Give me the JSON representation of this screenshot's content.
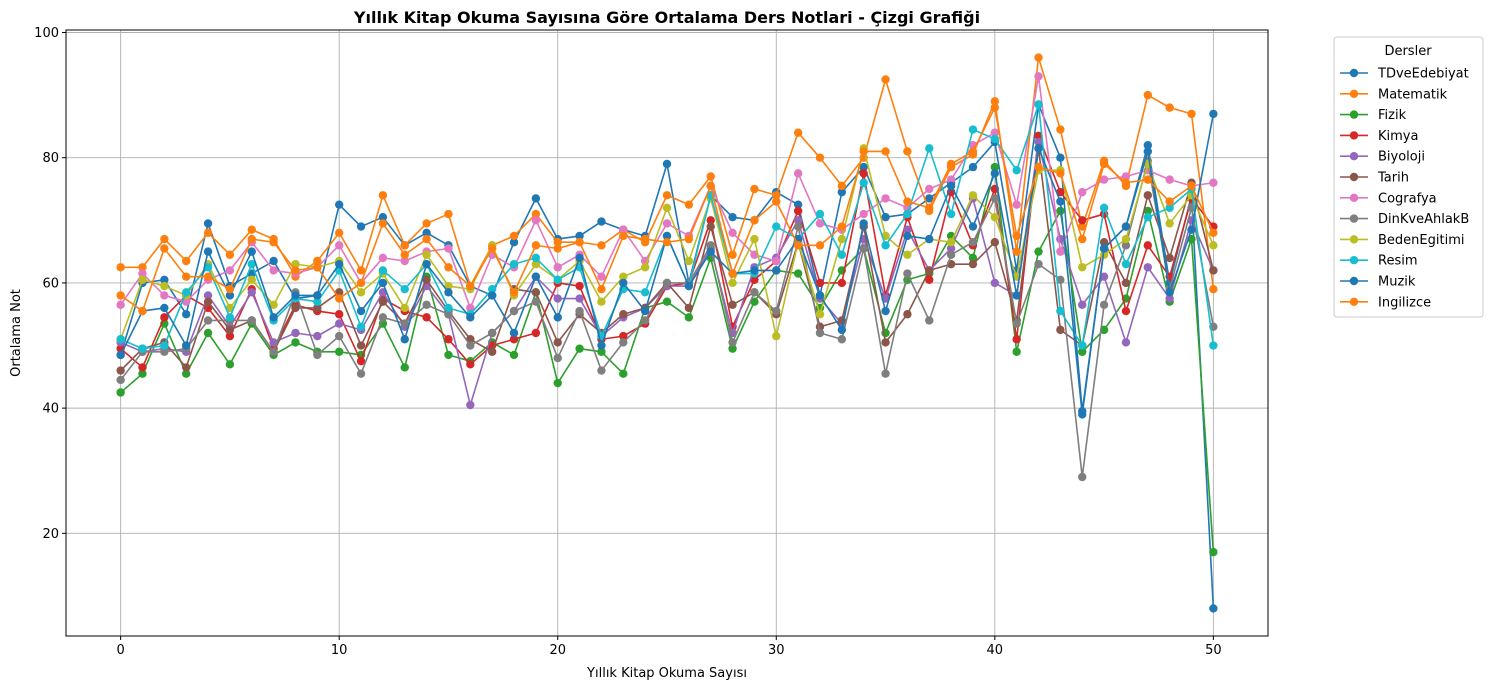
{
  "chart_data": {
    "type": "line",
    "title": "Yıllık Kitap Okuma Sayısına Göre Ortalama Ders Notlari - Çizgi Grafiği",
    "xlabel": "Yıllık Kitap Okuma Sayısı",
    "ylabel": "Ortalama Not",
    "xlim": [
      -2.5,
      52.5
    ],
    "ylim": [
      3.6,
      100.4
    ],
    "xticks": [
      0,
      10,
      20,
      30,
      40,
      50
    ],
    "yticks": [
      20,
      40,
      60,
      80,
      100
    ],
    "grid": true,
    "legend_title": "Dersler",
    "legend_position": "outside-right-top",
    "x": [
      0,
      1,
      2,
      3,
      4,
      5,
      6,
      7,
      8,
      9,
      10,
      11,
      12,
      13,
      14,
      15,
      16,
      17,
      18,
      19,
      20,
      21,
      22,
      23,
      24,
      25,
      26,
      27,
      28,
      29,
      30,
      31,
      32,
      33,
      34,
      35,
      36,
      37,
      38,
      39,
      40,
      41,
      42,
      43,
      44,
      45,
      46,
      47,
      48,
      49,
      50
    ],
    "series": [
      {
        "name": "TDveEdebiyat",
        "color": "#1f77b4",
        "values": [
          48.5,
          60.0,
          60.5,
          55.0,
          69.5,
          59.5,
          61.5,
          63.5,
          57.5,
          58.0,
          72.5,
          69.0,
          70.5,
          66.0,
          68.0,
          66.0,
          59.5,
          58.0,
          66.5,
          73.5,
          67.0,
          67.5,
          69.8,
          68.5,
          67.5,
          79.0,
          60.0,
          74.0,
          70.5,
          70.0,
          74.5,
          72.5,
          58.0,
          74.5,
          78.5,
          70.5,
          71.0,
          73.5,
          76.0,
          78.5,
          82.5,
          62.0,
          88.5,
          80.0,
          39.5,
          65.5,
          69.0,
          82.0,
          60.0,
          74.0,
          8.0
        ]
      },
      {
        "name": "Matematik",
        "color": "#ff7f0e",
        "values": [
          62.5,
          62.5,
          67.0,
          63.5,
          68.0,
          64.5,
          68.5,
          67.0,
          61.0,
          63.5,
          68.0,
          62.0,
          74.0,
          66.0,
          69.5,
          71.0,
          59.5,
          66.0,
          67.5,
          71.0,
          66.5,
          66.5,
          66.0,
          68.5,
          66.5,
          74.0,
          72.5,
          77.0,
          64.5,
          75.0,
          74.0,
          84.0,
          80.0,
          75.5,
          80.0,
          92.5,
          81.0,
          71.5,
          78.5,
          80.5,
          89.0,
          65.0,
          96.0,
          84.5,
          69.0,
          79.5,
          75.5,
          90.0,
          88.0,
          87.0,
          59.0
        ]
      },
      {
        "name": "Fizik",
        "color": "#2ca02c",
        "values": [
          42.5,
          45.5,
          53.5,
          45.5,
          52.0,
          47.0,
          53.5,
          48.5,
          50.5,
          49.0,
          49.0,
          48.5,
          53.5,
          46.5,
          61.0,
          48.5,
          47.5,
          50.5,
          48.5,
          58.5,
          44.0,
          49.5,
          49.0,
          45.5,
          56.0,
          57.0,
          54.5,
          64.0,
          49.5,
          57.0,
          62.0,
          61.5,
          56.0,
          62.0,
          65.5,
          52.0,
          60.5,
          61.5,
          67.5,
          64.0,
          78.5,
          49.0,
          65.0,
          71.5,
          49.0,
          52.5,
          57.5,
          71.5,
          57.0,
          67.0,
          17.0
        ]
      },
      {
        "name": "Kimya",
        "color": "#d62728",
        "values": [
          49.5,
          46.5,
          54.5,
          58.0,
          56.0,
          51.5,
          59.0,
          49.5,
          56.5,
          55.5,
          55.0,
          47.5,
          57.5,
          55.5,
          54.5,
          51.0,
          47.0,
          50.0,
          51.0,
          52.0,
          60.0,
          59.5,
          51.0,
          51.5,
          53.5,
          59.5,
          60.0,
          70.0,
          53.0,
          60.5,
          63.5,
          71.5,
          60.0,
          60.0,
          77.5,
          58.0,
          70.5,
          60.5,
          74.5,
          66.0,
          75.0,
          51.0,
          83.5,
          74.5,
          70.0,
          71.0,
          55.5,
          66.0,
          61.0,
          73.5,
          69.0
        ]
      },
      {
        "name": "Biyoloji",
        "color": "#9467bd",
        "values": [
          50.5,
          49.0,
          49.5,
          49.0,
          58.0,
          53.0,
          58.5,
          50.5,
          52.0,
          51.5,
          53.5,
          52.5,
          58.5,
          53.0,
          59.5,
          55.0,
          40.5,
          52.0,
          55.5,
          61.0,
          57.5,
          57.5,
          51.5,
          54.5,
          56.0,
          59.5,
          59.5,
          65.5,
          52.0,
          62.5,
          64.0,
          70.0,
          57.5,
          53.5,
          67.0,
          57.5,
          68.5,
          62.0,
          65.5,
          73.5,
          60.0,
          58.0,
          82.5,
          67.0,
          56.5,
          61.0,
          50.5,
          62.5,
          57.5,
          70.0,
          62.0
        ]
      },
      {
        "name": "Tarih",
        "color": "#8c564b",
        "values": [
          46.0,
          49.5,
          50.5,
          46.5,
          57.0,
          52.5,
          54.0,
          49.0,
          56.0,
          56.0,
          58.5,
          50.0,
          57.0,
          53.5,
          60.5,
          55.5,
          51.0,
          49.0,
          59.0,
          58.5,
          50.5,
          55.0,
          52.0,
          55.0,
          56.0,
          60.0,
          56.0,
          69.0,
          56.5,
          58.5,
          55.0,
          66.5,
          53.0,
          54.0,
          69.0,
          50.5,
          55.0,
          62.0,
          63.0,
          63.0,
          66.5,
          54.0,
          81.5,
          52.5,
          50.0,
          66.5,
          60.0,
          74.0,
          64.0,
          76.0,
          62.0
        ]
      },
      {
        "name": "Cografya",
        "color": "#e377c2",
        "values": [
          56.5,
          61.5,
          58.0,
          57.0,
          60.5,
          62.0,
          66.5,
          62.0,
          61.5,
          62.5,
          66.0,
          60.0,
          64.0,
          63.5,
          65.0,
          65.5,
          56.0,
          64.5,
          62.5,
          70.0,
          62.5,
          64.5,
          61.0,
          68.5,
          63.5,
          69.5,
          67.5,
          75.5,
          68.0,
          64.5,
          63.5,
          77.5,
          69.5,
          68.5,
          71.0,
          73.5,
          72.0,
          75.0,
          76.5,
          82.0,
          84.0,
          72.5,
          93.0,
          65.0,
          74.5,
          76.5,
          77.0,
          78.0,
          76.5,
          75.5,
          76.0
        ]
      },
      {
        "name": "DinKveAhlakB",
        "color": "#7f7f7f",
        "values": [
          44.5,
          49.0,
          49.0,
          49.5,
          54.0,
          54.0,
          54.0,
          49.0,
          58.5,
          48.5,
          51.5,
          45.5,
          54.5,
          53.5,
          56.5,
          55.0,
          50.0,
          52.0,
          55.5,
          57.0,
          48.0,
          55.5,
          46.0,
          50.5,
          54.0,
          60.0,
          60.0,
          66.0,
          50.5,
          58.5,
          55.5,
          69.0,
          52.0,
          51.0,
          65.5,
          45.5,
          61.5,
          54.0,
          64.5,
          66.5,
          73.5,
          53.5,
          63.0,
          60.5,
          29.0,
          56.5,
          66.0,
          79.5,
          59.0,
          72.0,
          53.0
        ]
      },
      {
        "name": "BedenEgitimi",
        "color": "#bcbd22",
        "values": [
          51.0,
          60.5,
          59.5,
          58.0,
          63.0,
          56.0,
          60.5,
          56.5,
          63.0,
          62.5,
          63.5,
          58.5,
          61.5,
          56.0,
          64.5,
          59.5,
          59.0,
          66.0,
          58.0,
          63.0,
          60.5,
          63.5,
          57.0,
          61.0,
          62.5,
          72.0,
          63.5,
          73.5,
          60.0,
          67.0,
          51.5,
          66.5,
          55.0,
          67.0,
          81.5,
          67.5,
          64.5,
          67.0,
          66.5,
          74.0,
          70.5,
          61.0,
          78.0,
          78.0,
          62.5,
          64.5,
          67.0,
          79.0,
          69.5,
          74.0,
          66.0
        ]
      },
      {
        "name": "Resim",
        "color": "#17becf",
        "values": [
          51.0,
          49.5,
          50.0,
          58.5,
          62.5,
          54.5,
          63.0,
          54.0,
          57.5,
          57.0,
          62.0,
          53.0,
          62.0,
          59.0,
          63.0,
          56.0,
          55.0,
          59.0,
          63.0,
          64.0,
          60.5,
          62.5,
          51.5,
          59.0,
          58.5,
          67.5,
          59.5,
          74.0,
          61.5,
          61.5,
          69.0,
          67.0,
          71.0,
          64.5,
          76.0,
          66.0,
          71.0,
          81.5,
          71.0,
          84.5,
          83.0,
          78.0,
          88.5,
          55.5,
          50.0,
          72.0,
          63.0,
          70.5,
          72.0,
          75.0,
          50.0
        ]
      },
      {
        "name": "Muzik",
        "color": "#1f77b4",
        "values": [
          48.5,
          55.5,
          56.0,
          50.0,
          65.0,
          58.0,
          65.0,
          54.5,
          58.0,
          58.0,
          63.0,
          55.5,
          60.0,
          51.0,
          63.0,
          58.5,
          54.5,
          58.0,
          52.0,
          61.0,
          54.5,
          64.0,
          50.0,
          60.0,
          55.5,
          67.5,
          59.5,
          65.0,
          61.5,
          62.0,
          62.0,
          67.0,
          58.0,
          52.5,
          69.5,
          55.5,
          67.5,
          67.0,
          75.5,
          69.0,
          77.5,
          58.0,
          81.5,
          73.0,
          39.0,
          65.5,
          69.0,
          81.0,
          58.5,
          68.5,
          87.0
        ]
      },
      {
        "name": "Ingilizce",
        "color": "#ff7f0e",
        "values": [
          58.0,
          55.5,
          65.5,
          61.0,
          61.0,
          59.0,
          67.0,
          66.5,
          62.0,
          62.5,
          57.5,
          60.0,
          69.5,
          64.5,
          67.0,
          62.5,
          59.5,
          65.5,
          58.5,
          66.0,
          65.5,
          66.5,
          59.0,
          67.5,
          67.0,
          66.5,
          67.0,
          75.5,
          61.5,
          70.0,
          73.0,
          66.0,
          66.0,
          69.0,
          81.0,
          81.0,
          73.0,
          72.0,
          79.0,
          81.0,
          88.0,
          67.5,
          78.5,
          77.5,
          67.0,
          79.0,
          76.0,
          76.5,
          73.0,
          75.5,
          68.0
        ]
      }
    ]
  }
}
